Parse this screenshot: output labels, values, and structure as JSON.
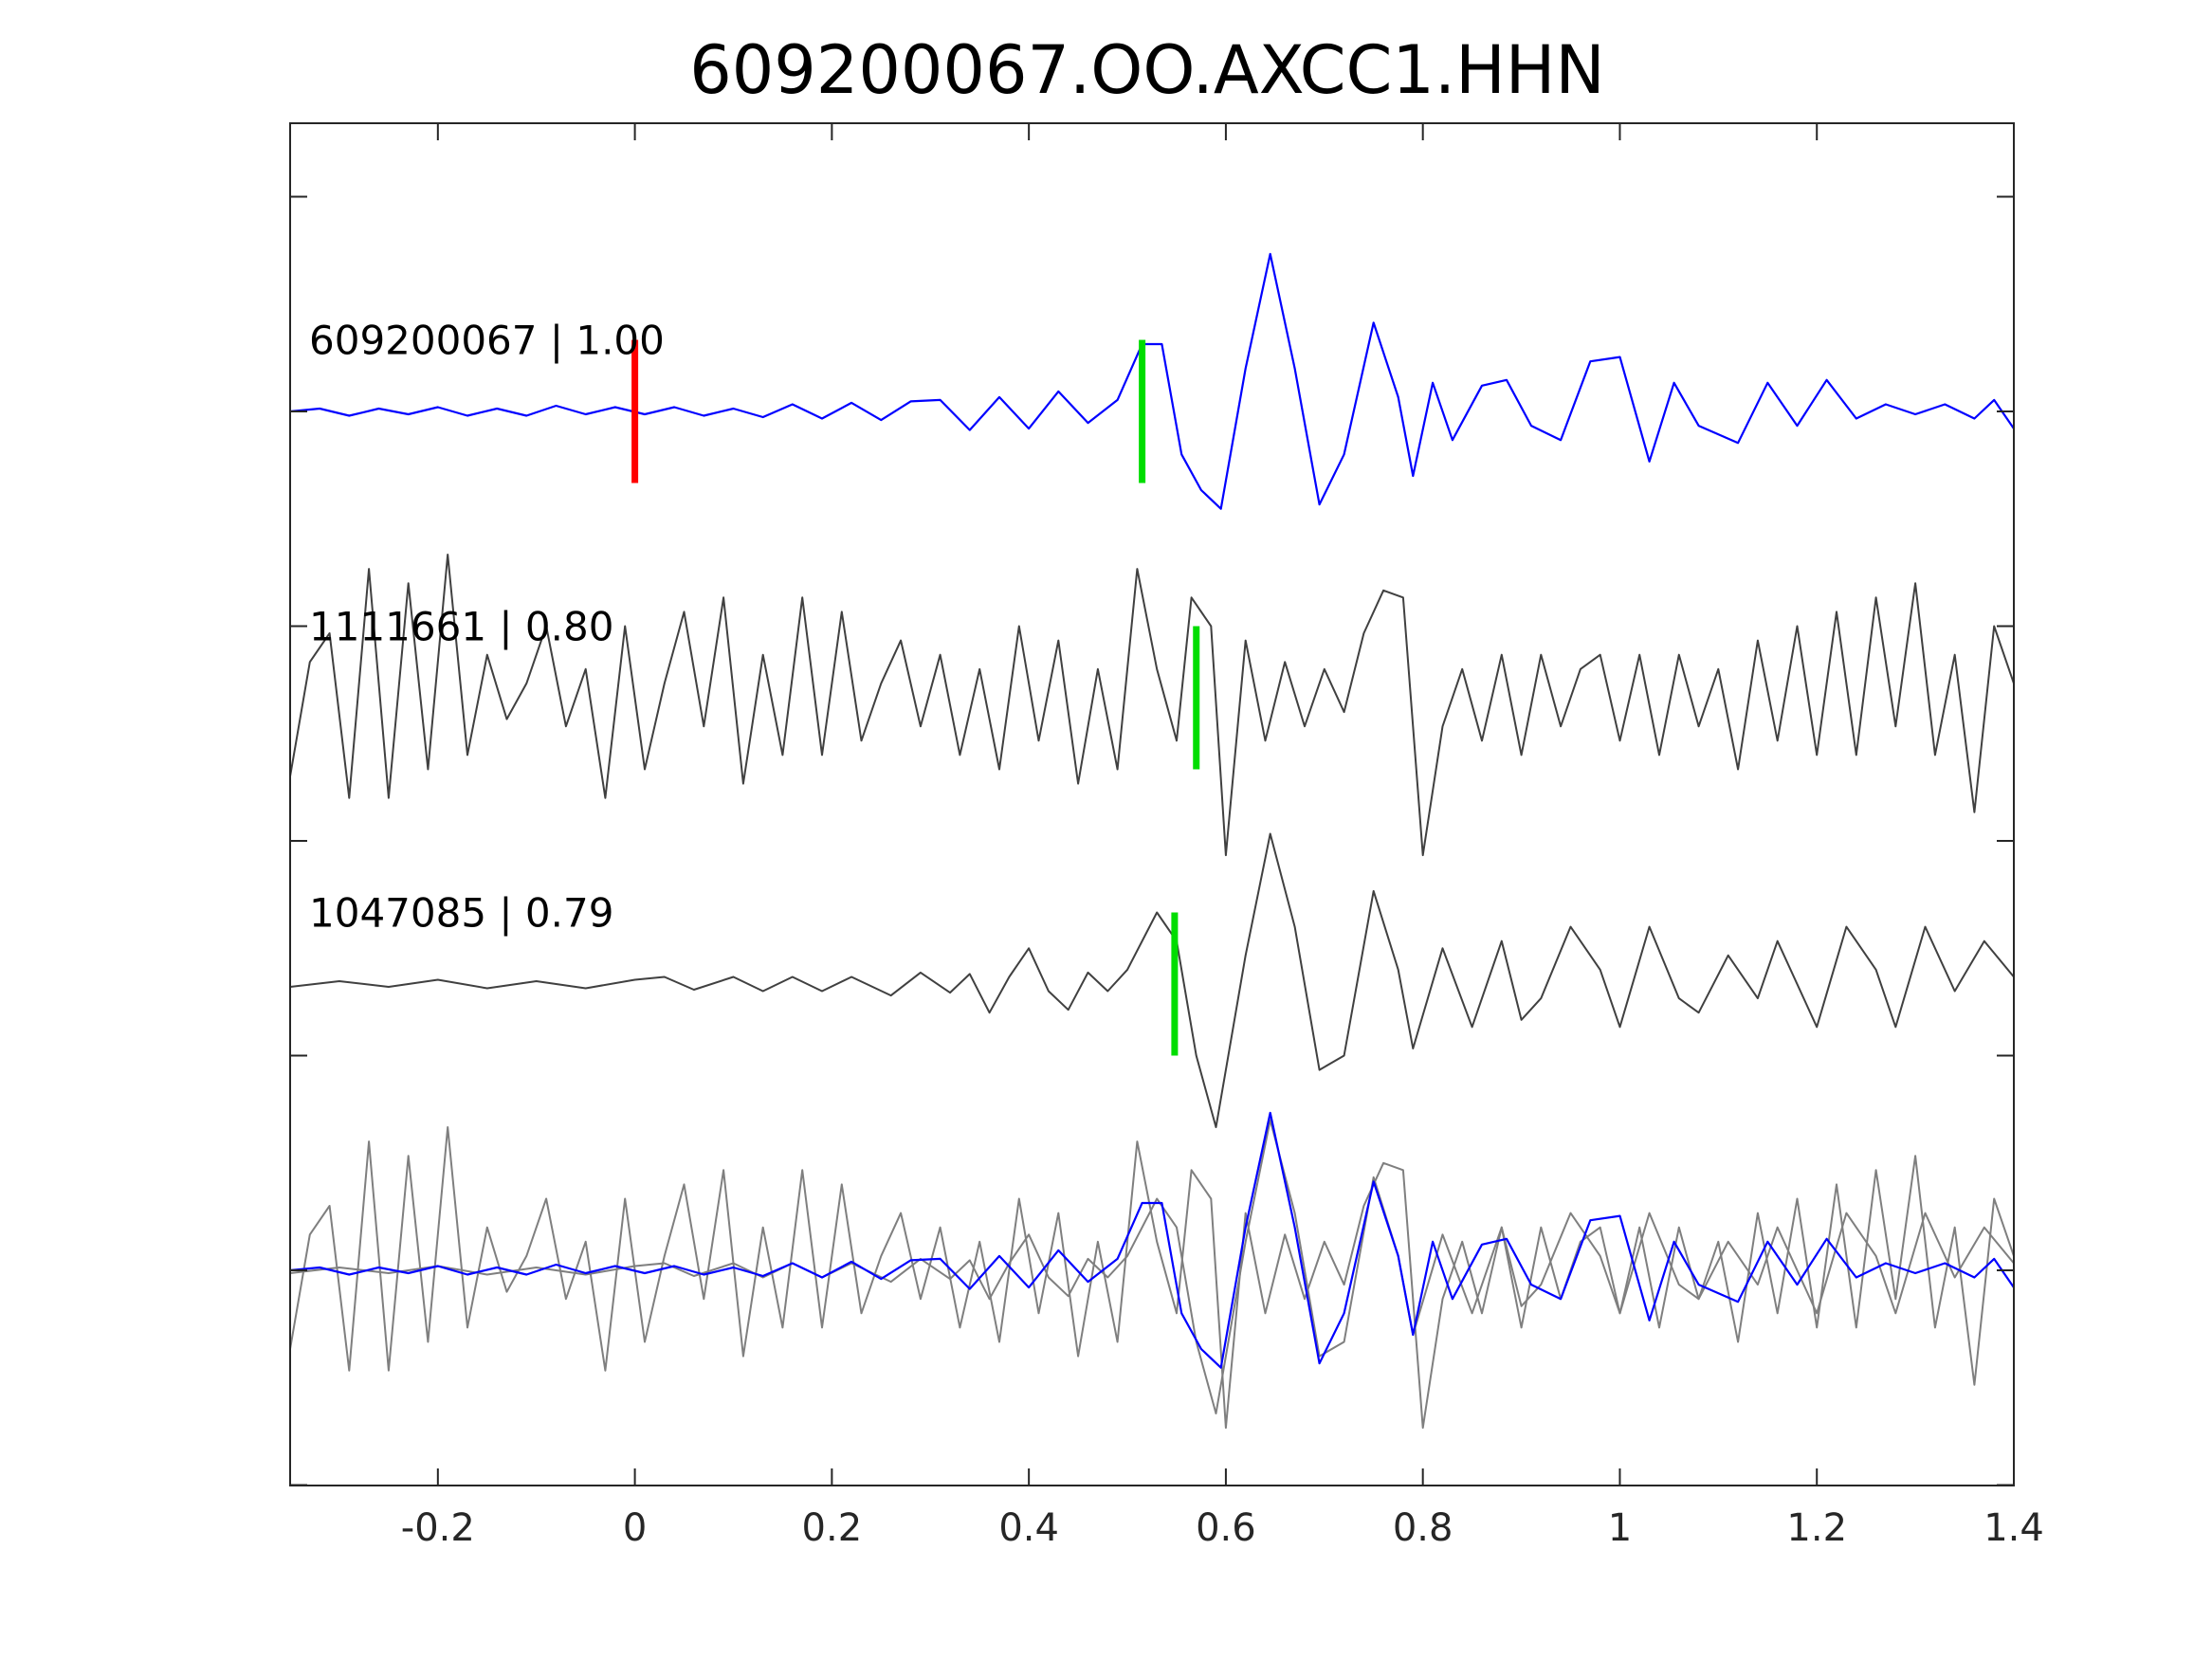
{
  "chart_data": {
    "type": "line",
    "title": "609200067.OO.AXCC1.HHN",
    "xlabel": "",
    "ylabel": "",
    "xlim": [
      -0.35,
      1.4
    ],
    "x_ticks": [
      -0.2,
      0,
      0.2,
      0.4,
      0.6,
      0.8,
      1,
      1.2,
      1.4
    ],
    "x_tick_labels": [
      "-0.2",
      "0",
      "0.2",
      "0.4",
      "0.6",
      "0.8",
      "1",
      "1.2",
      "1.4"
    ],
    "y_ticks_count": 9,
    "grid": false,
    "colors": {
      "reference": "#0000ff",
      "match": "#404040",
      "overlay_match": "#7f7f7f",
      "origin_pick": "#ff0000",
      "phase_pick": "#00dd00"
    },
    "traces": [
      {
        "label": "609200067 | 1.00",
        "offset": 6,
        "color_key": "reference",
        "picks": [
          {
            "x": 0.0,
            "color_key": "origin_pick"
          },
          {
            "x": 0.515,
            "color_key": "phase_pick"
          }
        ],
        "points": [
          [
            -0.35,
            0.0
          ],
          [
            -0.32,
            0.02
          ],
          [
            -0.29,
            -0.03
          ],
          [
            -0.26,
            0.02
          ],
          [
            -0.23,
            -0.02
          ],
          [
            -0.2,
            0.03
          ],
          [
            -0.17,
            -0.03
          ],
          [
            -0.14,
            0.02
          ],
          [
            -0.11,
            -0.03
          ],
          [
            -0.08,
            0.04
          ],
          [
            -0.05,
            -0.02
          ],
          [
            -0.02,
            0.03
          ],
          [
            0.01,
            -0.02
          ],
          [
            0.04,
            0.03
          ],
          [
            0.07,
            -0.03
          ],
          [
            0.1,
            0.02
          ],
          [
            0.13,
            -0.04
          ],
          [
            0.16,
            0.05
          ],
          [
            0.19,
            -0.05
          ],
          [
            0.22,
            0.06
          ],
          [
            0.25,
            -0.06
          ],
          [
            0.28,
            0.07
          ],
          [
            0.31,
            0.08
          ],
          [
            0.34,
            -0.13
          ],
          [
            0.37,
            0.1
          ],
          [
            0.4,
            -0.12
          ],
          [
            0.43,
            0.14
          ],
          [
            0.46,
            -0.08
          ],
          [
            0.49,
            0.08
          ],
          [
            0.515,
            0.47
          ],
          [
            0.535,
            0.47
          ],
          [
            0.555,
            -0.3
          ],
          [
            0.575,
            -0.55
          ],
          [
            0.595,
            -0.68
          ],
          [
            0.62,
            0.3
          ],
          [
            0.645,
            1.1
          ],
          [
            0.67,
            0.3
          ],
          [
            0.695,
            -0.65
          ],
          [
            0.72,
            -0.3
          ],
          [
            0.75,
            0.62
          ],
          [
            0.775,
            0.1
          ],
          [
            0.79,
            -0.45
          ],
          [
            0.81,
            0.2
          ],
          [
            0.83,
            -0.2
          ],
          [
            0.86,
            0.18
          ],
          [
            0.885,
            0.22
          ],
          [
            0.91,
            -0.1
          ],
          [
            0.94,
            -0.2
          ],
          [
            0.97,
            0.35
          ],
          [
            1.0,
            0.38
          ],
          [
            1.03,
            -0.35
          ],
          [
            1.055,
            0.2
          ],
          [
            1.08,
            -0.1
          ],
          [
            1.12,
            -0.22
          ],
          [
            1.15,
            0.2
          ],
          [
            1.18,
            -0.1
          ],
          [
            1.21,
            0.22
          ],
          [
            1.24,
            -0.05
          ],
          [
            1.27,
            0.05
          ],
          [
            1.3,
            -0.02
          ],
          [
            1.33,
            0.05
          ],
          [
            1.36,
            -0.05
          ],
          [
            1.38,
            0.08
          ],
          [
            1.4,
            -0.12
          ]
        ]
      },
      {
        "label": "1111661 | 0.80",
        "offset": 4,
        "color_key": "match",
        "picks": [
          {
            "x": 0.57,
            "color_key": "phase_pick"
          }
        ],
        "points": [
          [
            -0.35,
            -0.55
          ],
          [
            -0.33,
            0.25
          ],
          [
            -0.31,
            0.45
          ],
          [
            -0.29,
            -0.7
          ],
          [
            -0.27,
            0.9
          ],
          [
            -0.25,
            -0.7
          ],
          [
            -0.23,
            0.8
          ],
          [
            -0.21,
            -0.5
          ],
          [
            -0.19,
            1.0
          ],
          [
            -0.17,
            -0.4
          ],
          [
            -0.15,
            0.3
          ],
          [
            -0.13,
            -0.15
          ],
          [
            -0.11,
            0.1
          ],
          [
            -0.09,
            0.5
          ],
          [
            -0.07,
            -0.2
          ],
          [
            -0.05,
            0.2
          ],
          [
            -0.03,
            -0.7
          ],
          [
            -0.01,
            0.5
          ],
          [
            0.01,
            -0.5
          ],
          [
            0.03,
            0.1
          ],
          [
            0.05,
            0.6
          ],
          [
            0.07,
            -0.2
          ],
          [
            0.09,
            0.7
          ],
          [
            0.11,
            -0.6
          ],
          [
            0.13,
            0.3
          ],
          [
            0.15,
            -0.4
          ],
          [
            0.17,
            0.7
          ],
          [
            0.19,
            -0.4
          ],
          [
            0.21,
            0.6
          ],
          [
            0.23,
            -0.3
          ],
          [
            0.25,
            0.1
          ],
          [
            0.27,
            0.4
          ],
          [
            0.29,
            -0.2
          ],
          [
            0.31,
            0.3
          ],
          [
            0.33,
            -0.4
          ],
          [
            0.35,
            0.2
          ],
          [
            0.37,
            -0.5
          ],
          [
            0.39,
            0.5
          ],
          [
            0.41,
            -0.3
          ],
          [
            0.43,
            0.4
          ],
          [
            0.45,
            -0.6
          ],
          [
            0.47,
            0.2
          ],
          [
            0.49,
            -0.5
          ],
          [
            0.51,
            0.9
          ],
          [
            0.53,
            0.2
          ],
          [
            0.55,
            -0.3
          ],
          [
            0.565,
            0.7
          ],
          [
            0.585,
            0.5
          ],
          [
            0.6,
            -1.1
          ],
          [
            0.62,
            0.4
          ],
          [
            0.64,
            -0.3
          ],
          [
            0.66,
            0.25
          ],
          [
            0.68,
            -0.2
          ],
          [
            0.7,
            0.2
          ],
          [
            0.72,
            -0.1
          ],
          [
            0.74,
            0.45
          ],
          [
            0.76,
            0.75
          ],
          [
            0.78,
            0.7
          ],
          [
            0.8,
            -1.1
          ],
          [
            0.82,
            -0.2
          ],
          [
            0.84,
            0.2
          ],
          [
            0.86,
            -0.3
          ],
          [
            0.88,
            0.3
          ],
          [
            0.9,
            -0.4
          ],
          [
            0.92,
            0.3
          ],
          [
            0.94,
            -0.2
          ],
          [
            0.96,
            0.2
          ],
          [
            0.98,
            0.3
          ],
          [
            1.0,
            -0.3
          ],
          [
            1.02,
            0.3
          ],
          [
            1.04,
            -0.4
          ],
          [
            1.06,
            0.3
          ],
          [
            1.08,
            -0.2
          ],
          [
            1.1,
            0.2
          ],
          [
            1.12,
            -0.5
          ],
          [
            1.14,
            0.4
          ],
          [
            1.16,
            -0.3
          ],
          [
            1.18,
            0.5
          ],
          [
            1.2,
            -0.4
          ],
          [
            1.22,
            0.6
          ],
          [
            1.24,
            -0.4
          ],
          [
            1.26,
            0.7
          ],
          [
            1.28,
            -0.2
          ],
          [
            1.3,
            0.8
          ],
          [
            1.32,
            -0.4
          ],
          [
            1.34,
            0.3
          ],
          [
            1.36,
            -0.8
          ],
          [
            1.38,
            0.5
          ],
          [
            1.4,
            0.1
          ]
        ]
      },
      {
        "label": "1047085 | 0.79",
        "offset": 2,
        "color_key": "match",
        "picks": [
          {
            "x": 0.548,
            "color_key": "phase_pick"
          }
        ],
        "points": [
          [
            -0.35,
            -0.02
          ],
          [
            -0.3,
            0.02
          ],
          [
            -0.25,
            -0.02
          ],
          [
            -0.2,
            0.03
          ],
          [
            -0.15,
            -0.03
          ],
          [
            -0.1,
            0.02
          ],
          [
            -0.05,
            -0.03
          ],
          [
            0.0,
            0.03
          ],
          [
            0.03,
            0.05
          ],
          [
            0.06,
            -0.04
          ],
          [
            0.1,
            0.05
          ],
          [
            0.13,
            -0.05
          ],
          [
            0.16,
            0.05
          ],
          [
            0.19,
            -0.05
          ],
          [
            0.22,
            0.05
          ],
          [
            0.26,
            -0.08
          ],
          [
            0.29,
            0.08
          ],
          [
            0.32,
            -0.06
          ],
          [
            0.34,
            0.07
          ],
          [
            0.36,
            -0.2
          ],
          [
            0.38,
            0.05
          ],
          [
            0.4,
            0.25
          ],
          [
            0.42,
            -0.05
          ],
          [
            0.44,
            -0.18
          ],
          [
            0.46,
            0.08
          ],
          [
            0.48,
            -0.05
          ],
          [
            0.5,
            0.1
          ],
          [
            0.53,
            0.5
          ],
          [
            0.55,
            0.3
          ],
          [
            0.57,
            -0.5
          ],
          [
            0.59,
            -1.0
          ],
          [
            0.62,
            0.2
          ],
          [
            0.645,
            1.05
          ],
          [
            0.67,
            0.4
          ],
          [
            0.695,
            -0.6
          ],
          [
            0.72,
            -0.5
          ],
          [
            0.75,
            0.65
          ],
          [
            0.775,
            0.1
          ],
          [
            0.79,
            -0.45
          ],
          [
            0.82,
            0.25
          ],
          [
            0.85,
            -0.3
          ],
          [
            0.88,
            0.3
          ],
          [
            0.9,
            -0.25
          ],
          [
            0.92,
            -0.1
          ],
          [
            0.95,
            0.4
          ],
          [
            0.98,
            0.1
          ],
          [
            1.0,
            -0.3
          ],
          [
            1.03,
            0.4
          ],
          [
            1.06,
            -0.1
          ],
          [
            1.08,
            -0.2
          ],
          [
            1.11,
            0.2
          ],
          [
            1.14,
            -0.1
          ],
          [
            1.16,
            0.3
          ],
          [
            1.2,
            -0.3
          ],
          [
            1.23,
            0.4
          ],
          [
            1.26,
            0.1
          ],
          [
            1.28,
            -0.3
          ],
          [
            1.31,
            0.4
          ],
          [
            1.34,
            -0.05
          ],
          [
            1.37,
            0.3
          ],
          [
            1.4,
            0.05
          ]
        ]
      }
    ],
    "overlay": {
      "offset": 0,
      "traces": [
        {
          "source": "1111661 | 0.80",
          "color_key": "overlay_match"
        },
        {
          "source": "1047085 | 0.79",
          "color_key": "overlay_match"
        },
        {
          "source": "609200067 | 1.00",
          "color_key": "reference"
        }
      ]
    }
  }
}
